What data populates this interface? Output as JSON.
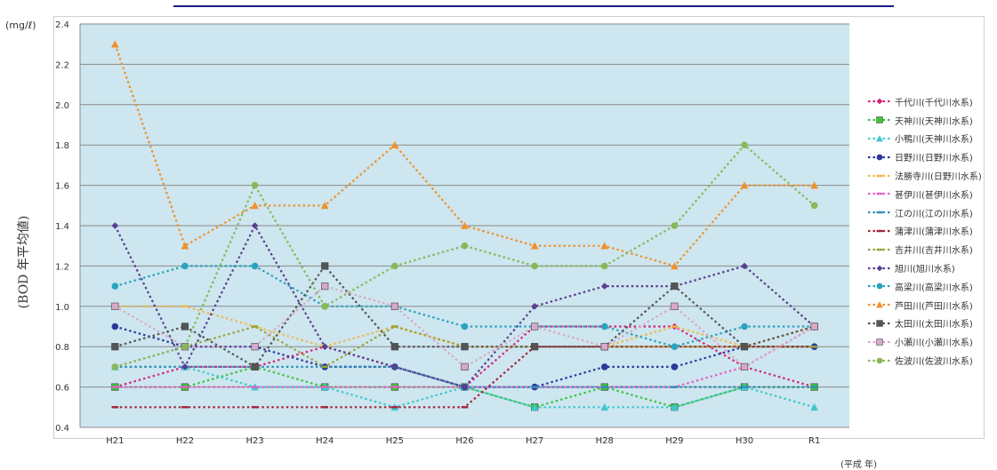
{
  "title": "",
  "unit_label": "(mg/ℓ)",
  "y_axis_label": "(BOD 年平均値)",
  "x_unit_label": "(平成 年)",
  "chart_data": {
    "type": "line",
    "categories": [
      "H21",
      "H22",
      "H23",
      "H24",
      "H25",
      "H26",
      "H27",
      "H28",
      "H29",
      "H30",
      "R1"
    ],
    "ylim": [
      0.4,
      2.4
    ],
    "yticks": [
      "0.4",
      "0.6",
      "0.8",
      "1.0",
      "1.2",
      "1.4",
      "1.6",
      "1.8",
      "2.0",
      "2.2",
      "2.4"
    ],
    "grid": true,
    "legend_position": "right",
    "series": [
      {
        "name": "千代川(千代川水系)",
        "color": "#d6247a",
        "marker": "diamond",
        "values": [
          0.6,
          0.7,
          0.7,
          0.8,
          0.7,
          0.6,
          0.9,
          0.9,
          0.9,
          0.7,
          0.6
        ]
      },
      {
        "name": "天神川(天神川水系)",
        "color": "#3cc43c",
        "marker": "square",
        "values": [
          0.6,
          0.6,
          0.7,
          0.6,
          0.6,
          0.6,
          0.5,
          0.6,
          0.5,
          0.6,
          0.6
        ]
      },
      {
        "name": "小鴨川(天神川水系)",
        "color": "#3fc7cf",
        "marker": "triangle",
        "values": [
          0.7,
          0.7,
          0.6,
          0.6,
          0.5,
          0.6,
          0.5,
          0.5,
          0.5,
          0.6,
          0.5
        ]
      },
      {
        "name": "日野川(日野川水系)",
        "color": "#2c3a9c",
        "marker": "circle",
        "values": [
          0.9,
          0.8,
          0.8,
          0.7,
          0.7,
          0.6,
          0.6,
          0.7,
          0.7,
          0.8,
          0.8
        ]
      },
      {
        "name": "法勝寺川(日野川水系)",
        "color": "#f2b84a",
        "marker": "dash",
        "values": [
          1.0,
          1.0,
          0.9,
          0.8,
          0.9,
          0.8,
          0.8,
          0.8,
          0.9,
          0.8,
          0.9
        ]
      },
      {
        "name": "甚伊川(甚伊川水系)",
        "color": "#e65fc7",
        "marker": "dash",
        "values": [
          0.6,
          0.6,
          0.6,
          0.6,
          0.6,
          0.6,
          0.6,
          0.6,
          0.6,
          0.7,
          0.9
        ]
      },
      {
        "name": "江の川(江の川水系)",
        "color": "#2d8fb8",
        "marker": "dash",
        "values": [
          0.7,
          0.7,
          0.7,
          0.7,
          0.7,
          0.6,
          0.6,
          0.6,
          0.6,
          0.6,
          0.6
        ]
      },
      {
        "name": "蒲津川(蒲津川水系)",
        "color": "#a5223a",
        "marker": "dash",
        "values": [
          0.5,
          0.5,
          0.5,
          0.5,
          0.5,
          0.5,
          0.8,
          0.8,
          0.8,
          0.8,
          0.8
        ]
      },
      {
        "name": "吉井川(吉井川水系)",
        "color": "#9aa23a",
        "marker": "dash",
        "values": [
          0.7,
          0.8,
          0.9,
          0.7,
          0.9,
          0.8,
          0.8,
          0.8,
          0.8,
          0.8,
          0.8
        ]
      },
      {
        "name": "旭川(旭川水系)",
        "color": "#5a3f8f",
        "marker": "diamond",
        "values": [
          1.4,
          0.7,
          1.4,
          0.8,
          0.7,
          0.6,
          1.0,
          1.1,
          1.1,
          1.2,
          0.9
        ]
      },
      {
        "name": "高梁川(高梁川水系)",
        "color": "#2aa3bf",
        "marker": "circle",
        "values": [
          1.1,
          1.2,
          1.2,
          1.0,
          1.0,
          0.9,
          0.9,
          0.9,
          0.8,
          0.9,
          0.9
        ]
      },
      {
        "name": "芦田川(芦田川水系)",
        "color": "#f0902a",
        "marker": "triangle",
        "values": [
          2.3,
          1.3,
          1.5,
          1.5,
          1.8,
          1.4,
          1.3,
          1.3,
          1.2,
          1.6,
          1.6
        ]
      },
      {
        "name": "太田川(太田川水系)",
        "color": "#555555",
        "marker": "square",
        "values": [
          0.8,
          0.9,
          0.7,
          1.2,
          0.8,
          0.8,
          0.8,
          0.8,
          1.1,
          0.8,
          0.9
        ]
      },
      {
        "name": "小瀬川(小瀬川水系)",
        "color": "#d9a8c8",
        "marker": "square",
        "values": [
          1.0,
          0.8,
          0.8,
          1.1,
          1.0,
          0.7,
          0.9,
          0.8,
          1.0,
          0.7,
          0.9
        ]
      },
      {
        "name": "佐波川(佐波川水系)",
        "color": "#88b85a",
        "marker": "circle",
        "values": [
          0.7,
          0.8,
          1.6,
          1.0,
          1.2,
          1.3,
          1.2,
          1.2,
          1.4,
          1.8,
          1.5
        ]
      }
    ]
  }
}
